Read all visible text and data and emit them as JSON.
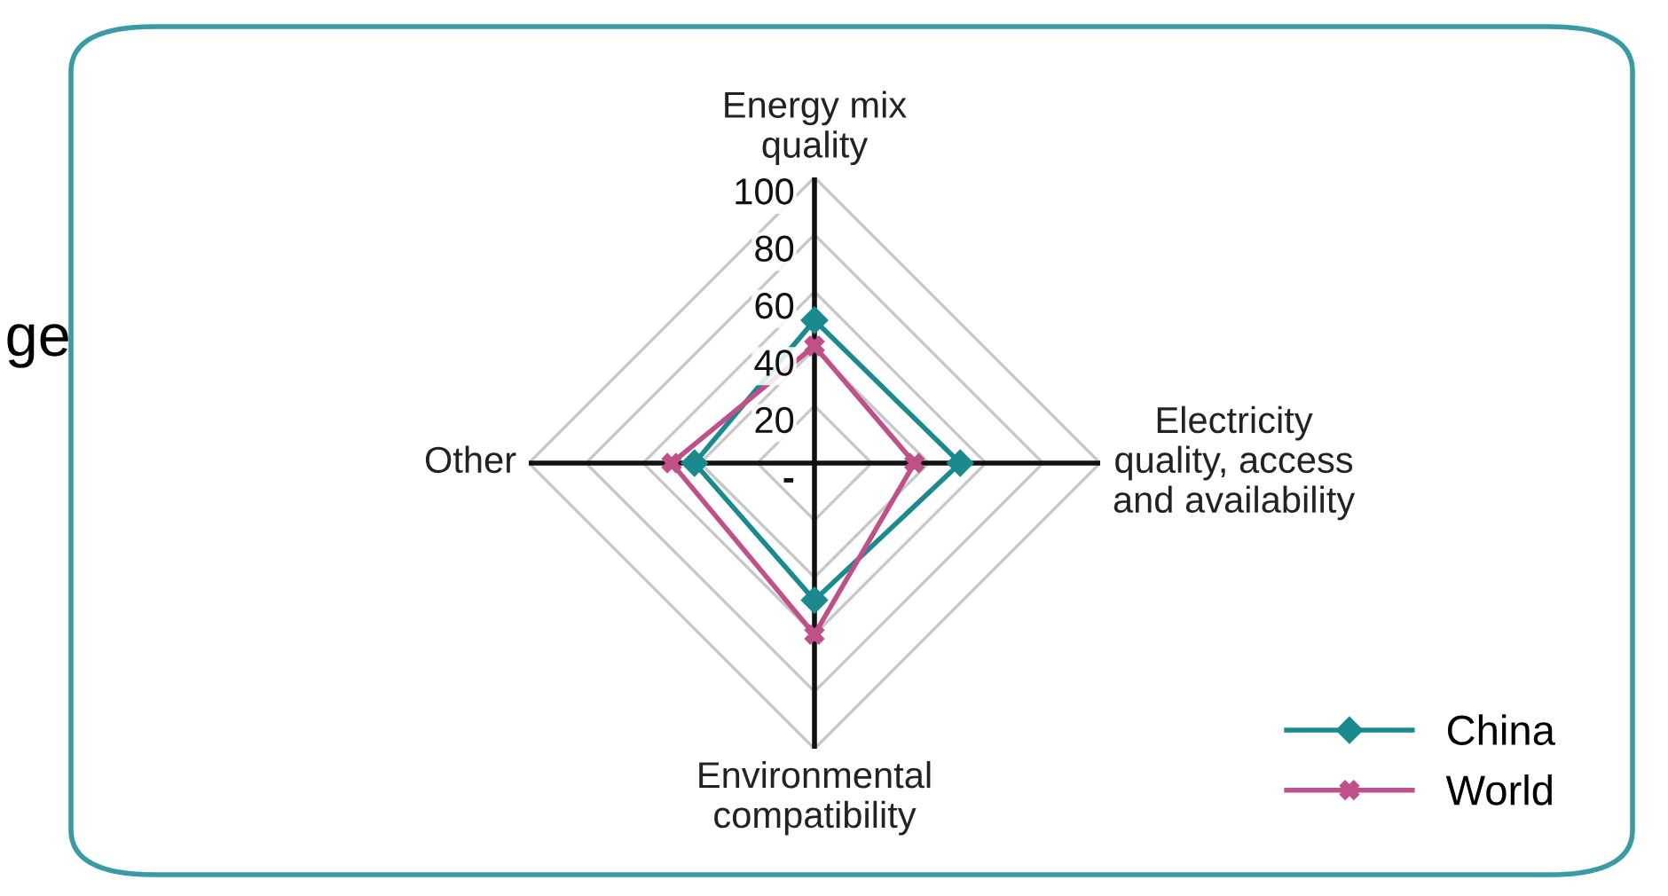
{
  "chart_data": {
    "type": "radar",
    "categories": [
      "Energy mix\nquality",
      "Electricity\nquality, access\nand availability",
      "Environmental\ncompatibility",
      "Other"
    ],
    "series": [
      {
        "name": "China",
        "color": "#1a8a8f",
        "marker": "diamond",
        "values": [
          50,
          51,
          48,
          42
        ]
      },
      {
        "name": "World",
        "color": "#c0508a",
        "marker": "cross",
        "values": [
          41,
          35,
          60,
          50
        ]
      }
    ],
    "ylim": [
      0,
      100
    ],
    "yticks": [
      {
        "value": 0,
        "label": "-"
      },
      20,
      40,
      60,
      80,
      100
    ],
    "grid": true,
    "legend": "bottom right",
    "line_style": "solid",
    "annotations": [
      "ge"
    ]
  }
}
